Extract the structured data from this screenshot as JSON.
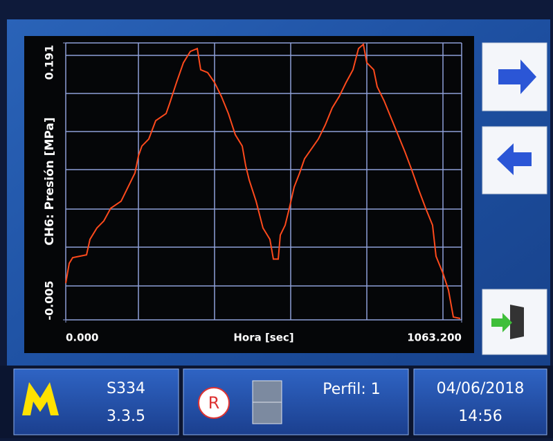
{
  "chart_data": {
    "type": "line",
    "ylabel": "CH6: Presión [MPa]",
    "xlabel": "Hora [sec]",
    "x": [
      0,
      9.3,
      18.6,
      55.8,
      65.1,
      83.6,
      102.2,
      120.8,
      148.7,
      167.3,
      185.9,
      195.2,
      204.5,
      223.0,
      241.6,
      269.5,
      278.8,
      297.4,
      316.0,
      334.6,
      353.2,
      362.4,
      381.0,
      399.6,
      418.2,
      436.8,
      455.4,
      474.0,
      483.3,
      492.6,
      511.1,
      529.7,
      548.3,
      557.6,
      570.6,
      576.2,
      589.2,
      600.4,
      613.4,
      628.2,
      641.3,
      659.8,
      678.4,
      697.0,
      715.6,
      734.2,
      752.8,
      771.4,
      786.2,
      799.2,
      808.5,
      827.1,
      836.4,
      855.0,
      873.6,
      892.2,
      910.8,
      929.4,
      948.0,
      966.5,
      985.1,
      994.4,
      1013.0,
      1027.9,
      1040.9,
      1059.5
    ],
    "series": [
      {
        "color": "#ff4a1c",
        "values": [
          0.021,
          0.035,
          0.039,
          0.041,
          0.052,
          0.06,
          0.065,
          0.074,
          0.079,
          0.089,
          0.099,
          0.111,
          0.118,
          0.123,
          0.136,
          0.141,
          0.148,
          0.163,
          0.177,
          0.185,
          0.187,
          0.172,
          0.17,
          0.163,
          0.153,
          0.141,
          0.126,
          0.118,
          0.104,
          0.094,
          0.079,
          0.06,
          0.052,
          0.038,
          0.038,
          0.055,
          0.062,
          0.074,
          0.089,
          0.099,
          0.109,
          0.116,
          0.123,
          0.133,
          0.145,
          0.153,
          0.163,
          0.172,
          0.187,
          0.19,
          0.177,
          0.172,
          0.16,
          0.15,
          0.138,
          0.126,
          0.114,
          0.101,
          0.087,
          0.074,
          0.062,
          0.04,
          0.028,
          0.016,
          -0.003,
          -0.004
        ]
      }
    ],
    "xlim": [
      0,
      1063.2
    ],
    "ylim": [
      -0.005,
      0.191
    ],
    "xticks": [
      {
        "value": 0,
        "label": "0.000"
      },
      {
        "value": 1063.2,
        "label": "1063.200"
      }
    ],
    "yticks": [
      -0.005,
      0.191
    ]
  },
  "status_bar": {
    "device": "S334",
    "version": "3.3.5",
    "record_badge": "R",
    "profile": "Perfil: 1",
    "date": "04/06/2018",
    "time": "14:56"
  }
}
